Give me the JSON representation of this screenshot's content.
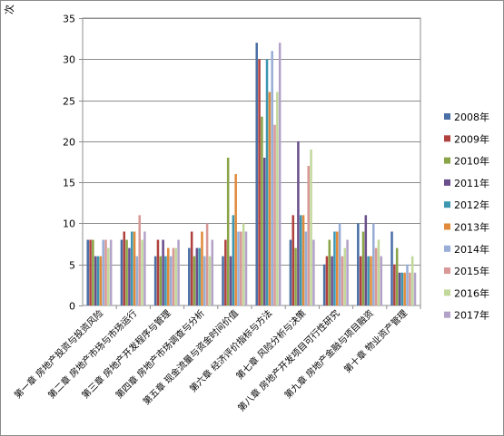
{
  "chart_data": {
    "type": "bar",
    "ylabel": "次",
    "ylim": [
      0,
      35
    ],
    "yticks": [
      0,
      5,
      10,
      15,
      20,
      25,
      30,
      35
    ],
    "grid": true,
    "legend_position": "right",
    "categories": [
      "第一章 房地产投资与投资风险",
      "第二章 房地产市场与市场运行",
      "第三章 房地产开发程序与管理",
      "第四章 房地产市场调查与分析",
      "第五章 现金流量与资金时间价值",
      "第六章 经济评价指标与方法",
      "第七章 风险分析与决策",
      "第八章 房地产开发项目可行性研究",
      "第九章 房地产金融与项目融资",
      "第十章 物业资产管理"
    ],
    "series": [
      {
        "name": "2008年",
        "color": "#4a6fa5",
        "values": [
          8,
          8,
          6,
          7,
          6,
          32,
          8,
          5,
          10,
          9
        ]
      },
      {
        "name": "2009年",
        "color": "#b0413e",
        "values": [
          8,
          9,
          8,
          9,
          8,
          30,
          11,
          6,
          6,
          5
        ]
      },
      {
        "name": "2010年",
        "color": "#8aa448",
        "values": [
          8,
          8,
          6,
          6,
          18,
          23,
          7,
          8,
          9,
          7
        ]
      },
      {
        "name": "2011年",
        "color": "#6a4f8c",
        "values": [
          6,
          7,
          8,
          7,
          6,
          18,
          20,
          6,
          11,
          4
        ]
      },
      {
        "name": "2012年",
        "color": "#3d97b0",
        "values": [
          6,
          9,
          6,
          7,
          11,
          30,
          11,
          9,
          6,
          4
        ]
      },
      {
        "name": "2013年",
        "color": "#e08a3a",
        "values": [
          6,
          9,
          7,
          9,
          16,
          26,
          11,
          9,
          6,
          4
        ]
      },
      {
        "name": "2014年",
        "color": "#98aed6",
        "values": [
          8,
          6,
          6,
          6,
          9,
          31,
          9,
          10,
          10,
          5
        ]
      },
      {
        "name": "2015年",
        "color": "#d89896",
        "values": [
          8,
          11,
          7,
          10,
          9,
          22,
          17,
          6,
          7,
          4
        ]
      },
      {
        "name": "2016年",
        "color": "#c2d89b",
        "values": [
          7,
          8,
          7,
          6,
          10,
          26,
          19,
          7,
          8,
          6
        ]
      },
      {
        "name": "2017年",
        "color": "#b3a2c8",
        "values": [
          8,
          9,
          8,
          8,
          9,
          32,
          8,
          8,
          6,
          4
        ]
      }
    ]
  }
}
